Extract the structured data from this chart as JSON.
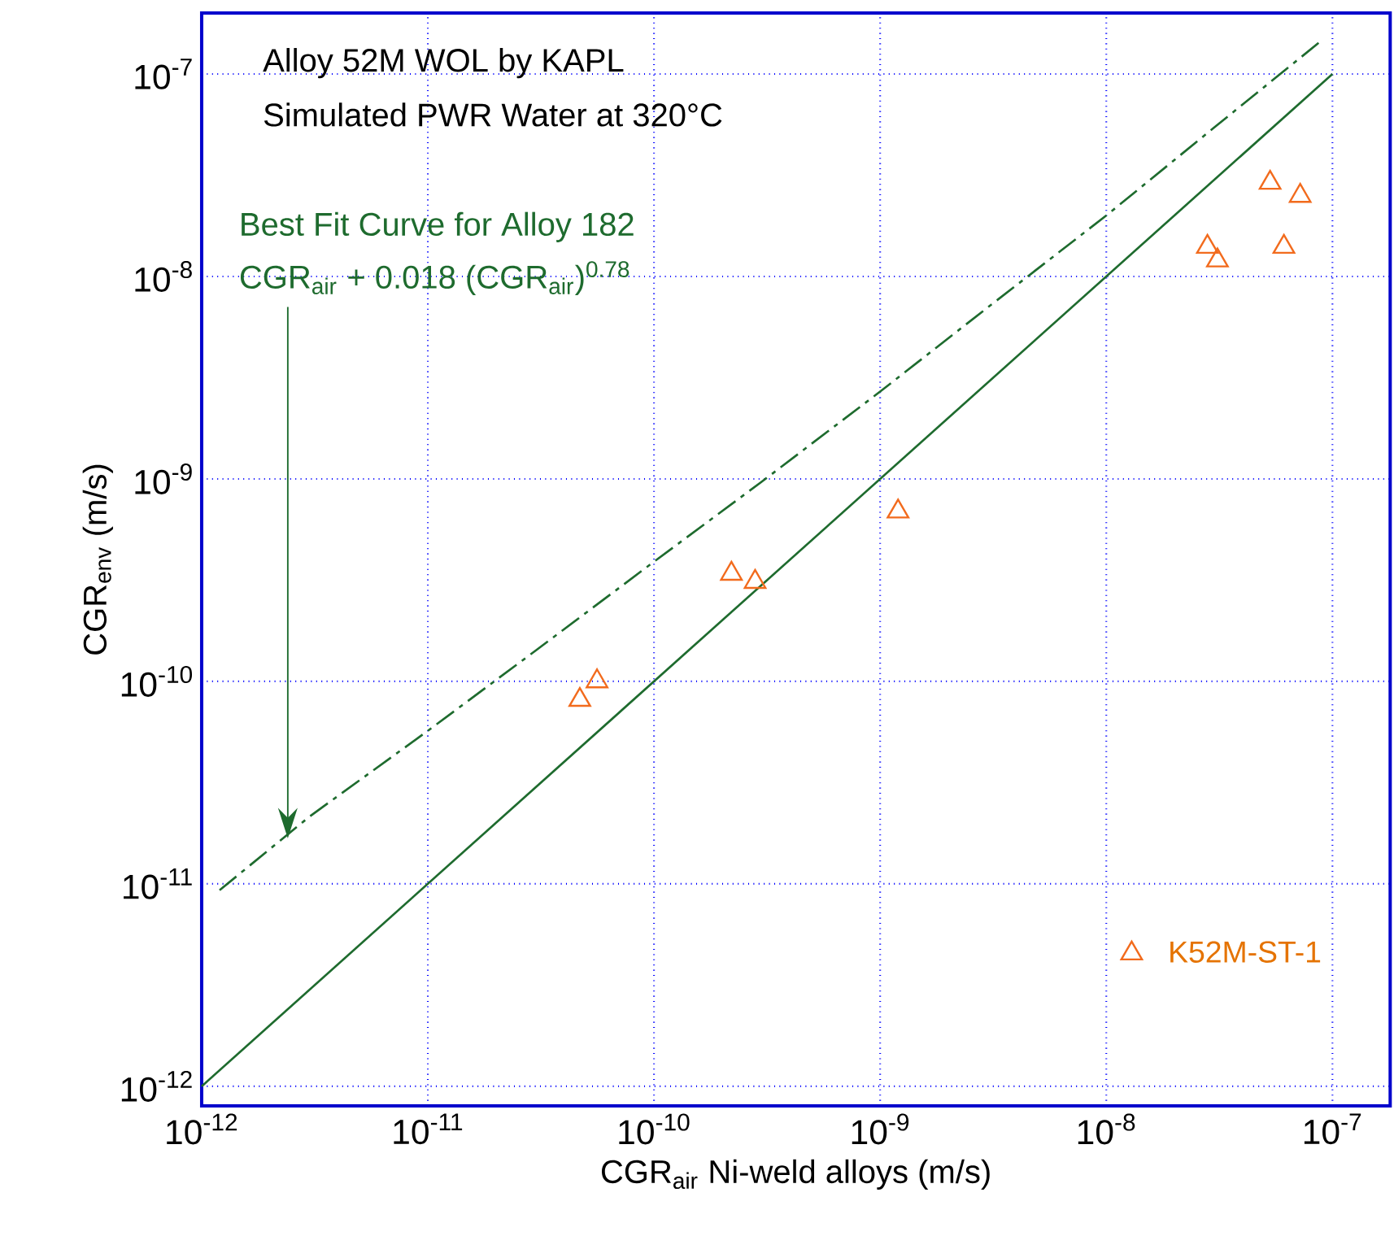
{
  "chart_data": {
    "type": "scatter",
    "xlabel": "CGR$_{air}$ Ni-weld alloys (m/s)",
    "ylabel": "CGR$_{env}$ (m/s)",
    "log": "xy",
    "xlim": [
      1e-12,
      1.8e-07
    ],
    "ylim": [
      8e-13,
      2e-07
    ],
    "xticks": [
      {
        "value": 1e-12,
        "label": "10$^{-12}$"
      },
      {
        "value": 1e-11,
        "label": "10$^{-11}$"
      },
      {
        "value": 1e-10,
        "label": "10$^{-10}$"
      },
      {
        "value": 1e-09,
        "label": "10$^{-9}$"
      },
      {
        "value": 1e-08,
        "label": "10$^{-8}$"
      },
      {
        "value": 1e-07,
        "label": "10$^{-7}$"
      }
    ],
    "yticks": [
      {
        "value": 1e-12,
        "label": "10$^{-12}$"
      },
      {
        "value": 1e-11,
        "label": "10$^{-11}$"
      },
      {
        "value": 1e-10,
        "label": "10$^{-10}$"
      },
      {
        "value": 1e-09,
        "label": "10$^{-9}$"
      },
      {
        "value": 1e-08,
        "label": "10$^{-8}$"
      },
      {
        "value": 1e-07,
        "label": "10$^{-7}$"
      }
    ],
    "grid": true,
    "legend": "bottom right",
    "series": [
      {
        "name": "K52M-ST-1",
        "type": "scatter",
        "color": "#f26b1d",
        "marker": "triangle",
        "x": [
          4.7e-11,
          5.6e-11,
          2.2e-10,
          2.8e-10,
          1.2e-09,
          2.8e-08,
          3.1e-08,
          5.3e-08,
          6.1e-08,
          7.2e-08
        ],
        "values": [
          8.1e-11,
          1e-10,
          3.4e-10,
          3.1e-10,
          6.9e-10,
          1.4e-08,
          1.2e-08,
          2.9e-08,
          1.4e-08,
          2.5e-08
        ]
      },
      {
        "type": "line",
        "color": "#1e6b2e",
        "line_style": "solid",
        "x": [
          1e-12,
          1e-07
        ],
        "values": [
          1e-12,
          1e-07
        ]
      },
      {
        "type": "line",
        "color": "#1e6b2e",
        "line_style": "dashed",
        "x": [
          1.2e-12,
          3e-12,
          1e-11,
          3e-11,
          1e-10,
          3e-10,
          1e-09,
          3e-09,
          1e-08,
          3e-08,
          9e-08
        ],
        "values": [
          9.3e-12,
          2.15e-11,
          5.7e-11,
          1.42e-10,
          3.9e-10,
          9.7e-10,
          2.7e-09,
          7.05e-09,
          2e-08,
          5.44e-08,
          1.47e-07
        ]
      }
    ],
    "annotations": [
      "Alloy 52M WOL by KAPL",
      "Simulated PWR Water at 320°C",
      "Best Fit Curve for Alloy 182",
      "CGR$_{air}$ + 0.018 (CGR$_{air}$)$^{0.78}$"
    ]
  }
}
